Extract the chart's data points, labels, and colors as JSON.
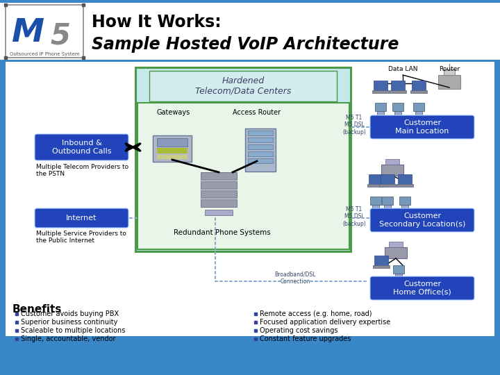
{
  "title_line1": "How It Works:",
  "title_line2": "Sample Hosted VoIP Architecture",
  "bg_blue": "#3a87c8",
  "bg_white": "#ffffff",
  "hardened_bg": "#c5e8ea",
  "hardened_border": "#4a9a4a",
  "hardened_label_text": "Hardened\nTelecom/Data Centers",
  "inner_green_border": "#4a9a4a",
  "inbound_bg": "#2244bb",
  "inbound_text": "Inbound &\nOutbound Calls",
  "internet_bg": "#2244bb",
  "internet_text": "Internet",
  "customer_main_bg": "#2244bb",
  "customer_main_text": "Customer\nMain Location",
  "customer_sec_bg": "#2244bb",
  "customer_sec_text": "Customer\nSecondary Location(s)",
  "customer_home_bg": "#2244bb",
  "customer_home_text": "Customer\nHome Office(s)",
  "data_lan_text": "Data LAN",
  "router_text": "Router",
  "gateways_text": "Gateways",
  "access_router_text": "Access Router",
  "redundant_text": "Redundant Phone Systems",
  "m5t1_main": "M5 T1\nM5 DSL\n(backup)",
  "m5t1_sec": "M5 T1\nM5 DSL\n(backup)",
  "broadband_text": "Broadband/DSL\nConnection",
  "multiple_telecom": "Multiple Telecom Providers to\nthe PSTN",
  "multiple_isp": "Multiple Service Providers to\nthe Public Internet",
  "benefits_title": "Benefits",
  "benefits_left": [
    "Customer avoids buying PBX",
    "Superior business continuity",
    "Scaleable to multiple locations",
    "Single, accountable, vendor"
  ],
  "benefits_right": [
    "Remote access (e.g. home, road)",
    "Focused application delivery expertise",
    "Operating cost savings",
    "Constant feature upgrades"
  ]
}
